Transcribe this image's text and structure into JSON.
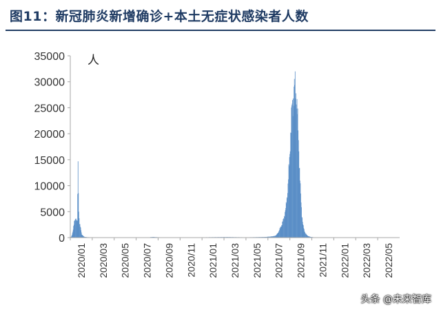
{
  "title": "图11：新冠肺炎新增确诊+本土无症状感染者人数",
  "watermark": "头条 @未来智库",
  "chart_data": {
    "type": "bar",
    "title": "图11：新冠肺炎新增确诊+本土无症状感染者人数",
    "ylabel": "人",
    "xlabel": "",
    "ylim": [
      0,
      35000
    ],
    "yticks": [
      0,
      5000,
      10000,
      15000,
      20000,
      25000,
      30000,
      35000
    ],
    "xticks": [
      "2020/01",
      "2020/03",
      "2020/05",
      "2020/07",
      "2020/09",
      "2020/11",
      "2021/01",
      "2021/03",
      "2021/05",
      "2021/07",
      "2021/09",
      "2021/11",
      "2022/01",
      "2022/03",
      "2022/05"
    ],
    "grid": false,
    "legend": "none",
    "bar_color": "#5b8fc7",
    "series": [
      {
        "values": [
          [
            0,
            50
          ],
          [
            2,
            180
          ],
          [
            4,
            500
          ],
          [
            6,
            1200
          ],
          [
            8,
            2100
          ],
          [
            10,
            2900
          ],
          [
            12,
            3500
          ],
          [
            14,
            3800
          ],
          [
            16,
            3300
          ],
          [
            18,
            3000
          ],
          [
            20,
            14100
          ],
          [
            22,
            5100
          ],
          [
            24,
            2600
          ],
          [
            26,
            2100
          ],
          [
            28,
            1500
          ],
          [
            30,
            600
          ],
          [
            34,
            300
          ],
          [
            38,
            120
          ],
          [
            45,
            80
          ],
          [
            60,
            40
          ],
          [
            90,
            30
          ],
          [
            120,
            25
          ],
          [
            150,
            20
          ],
          [
            190,
            25
          ],
          [
            210,
            60
          ],
          [
            220,
            120
          ],
          [
            230,
            80
          ],
          [
            250,
            40
          ],
          [
            300,
            30
          ],
          [
            330,
            40
          ],
          [
            350,
            60
          ],
          [
            380,
            80
          ],
          [
            420,
            100
          ],
          [
            440,
            80
          ],
          [
            470,
            60
          ],
          [
            500,
            90
          ],
          [
            520,
            120
          ],
          [
            535,
            200
          ],
          [
            545,
            300
          ],
          [
            550,
            500
          ],
          [
            555,
            1000
          ],
          [
            560,
            1800
          ],
          [
            565,
            2600
          ],
          [
            570,
            3800
          ],
          [
            575,
            5500
          ],
          [
            580,
            9000
          ],
          [
            585,
            15000
          ],
          [
            588,
            20000
          ],
          [
            591,
            24500
          ],
          [
            594,
            26000
          ],
          [
            597,
            28500
          ],
          [
            600,
            29200
          ],
          [
            603,
            27500
          ],
          [
            606,
            24000
          ],
          [
            609,
            19000
          ],
          [
            612,
            13000
          ],
          [
            615,
            8000
          ],
          [
            618,
            4500
          ],
          [
            621,
            2500
          ],
          [
            624,
            1500
          ],
          [
            627,
            900
          ],
          [
            631,
            500
          ],
          [
            636,
            250
          ],
          [
            642,
            120
          ],
          [
            650,
            60
          ]
        ]
      }
    ]
  }
}
